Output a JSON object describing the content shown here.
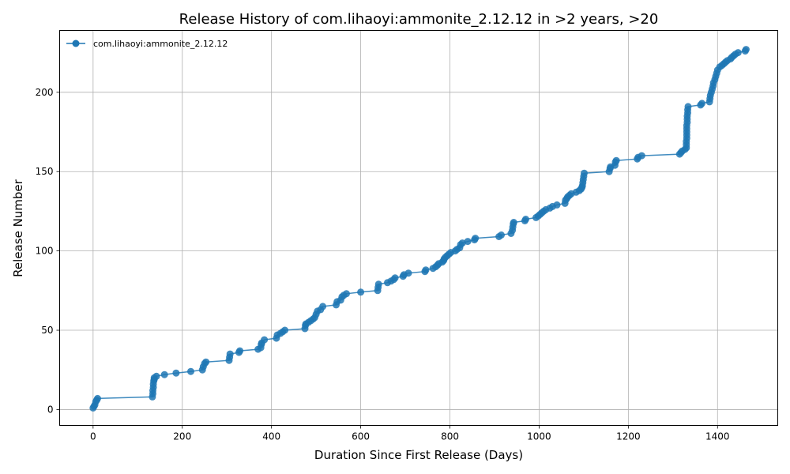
{
  "chart_data": {
    "type": "line",
    "title": "Release History of com.lihaoyi:ammonite_2.12.12 in >2 years, >20",
    "xlabel": "Duration Since First Release (Days)",
    "ylabel": "Release Number",
    "xlim": [
      -75,
      1535
    ],
    "ylim": [
      -10,
      239
    ],
    "xticks": [
      0,
      200,
      400,
      600,
      800,
      1000,
      1200,
      1400
    ],
    "yticks": [
      0,
      50,
      100,
      150,
      200
    ],
    "grid": true,
    "legend": "top-left",
    "color": "#1f77b4",
    "series": [
      {
        "name": "com.lihaoyi:ammonite_2.12.12",
        "points": [
          [
            0,
            1
          ],
          [
            2,
            2
          ],
          [
            4,
            3
          ],
          [
            6,
            5
          ],
          [
            8,
            6
          ],
          [
            10,
            7
          ],
          [
            133,
            8
          ],
          [
            134,
            10
          ],
          [
            134,
            12
          ],
          [
            135,
            14
          ],
          [
            135,
            16
          ],
          [
            136,
            18
          ],
          [
            137,
            19
          ],
          [
            137,
            20
          ],
          [
            142,
            21
          ],
          [
            160,
            22
          ],
          [
            186,
            23
          ],
          [
            219,
            24
          ],
          [
            245,
            25
          ],
          [
            247,
            27
          ],
          [
            250,
            29
          ],
          [
            253,
            30
          ],
          [
            305,
            31
          ],
          [
            306,
            33
          ],
          [
            307,
            35
          ],
          [
            327,
            36
          ],
          [
            329,
            37
          ],
          [
            370,
            38
          ],
          [
            376,
            39
          ],
          [
            377,
            41
          ],
          [
            378,
            42
          ],
          [
            384,
            44
          ],
          [
            411,
            45
          ],
          [
            413,
            47
          ],
          [
            420,
            48
          ],
          [
            425,
            49
          ],
          [
            430,
            50
          ],
          [
            475,
            51
          ],
          [
            476,
            53
          ],
          [
            477,
            54
          ],
          [
            483,
            55
          ],
          [
            488,
            56
          ],
          [
            493,
            57
          ],
          [
            497,
            58
          ],
          [
            500,
            60
          ],
          [
            503,
            62
          ],
          [
            510,
            63
          ],
          [
            515,
            65
          ],
          [
            545,
            66
          ],
          [
            547,
            68
          ],
          [
            555,
            69
          ],
          [
            558,
            71
          ],
          [
            562,
            72
          ],
          [
            568,
            73
          ],
          [
            600,
            74
          ],
          [
            638,
            75
          ],
          [
            639,
            77
          ],
          [
            640,
            79
          ],
          [
            660,
            80
          ],
          [
            668,
            81
          ],
          [
            674,
            82
          ],
          [
            677,
            83
          ],
          [
            695,
            84
          ],
          [
            697,
            85
          ],
          [
            707,
            86
          ],
          [
            744,
            87
          ],
          [
            746,
            88
          ],
          [
            762,
            89
          ],
          [
            768,
            90
          ],
          [
            772,
            91
          ],
          [
            775,
            92
          ],
          [
            783,
            93
          ],
          [
            786,
            94
          ],
          [
            787,
            95
          ],
          [
            790,
            96
          ],
          [
            794,
            97
          ],
          [
            798,
            98
          ],
          [
            802,
            99
          ],
          [
            812,
            100
          ],
          [
            816,
            101
          ],
          [
            822,
            102
          ],
          [
            824,
            104
          ],
          [
            828,
            105
          ],
          [
            840,
            106
          ],
          [
            855,
            107
          ],
          [
            857,
            108
          ],
          [
            910,
            109
          ],
          [
            915,
            110
          ],
          [
            937,
            111
          ],
          [
            940,
            113
          ],
          [
            941,
            115
          ],
          [
            942,
            117
          ],
          [
            943,
            118
          ],
          [
            968,
            119
          ],
          [
            970,
            120
          ],
          [
            993,
            121
          ],
          [
            998,
            122
          ],
          [
            1002,
            123
          ],
          [
            1006,
            124
          ],
          [
            1010,
            125
          ],
          [
            1015,
            126
          ],
          [
            1024,
            127
          ],
          [
            1030,
            128
          ],
          [
            1040,
            129
          ],
          [
            1058,
            130
          ],
          [
            1059,
            132
          ],
          [
            1062,
            133
          ],
          [
            1064,
            134
          ],
          [
            1068,
            135
          ],
          [
            1072,
            136
          ],
          [
            1083,
            137
          ],
          [
            1090,
            138
          ],
          [
            1094,
            139
          ],
          [
            1096,
            140
          ],
          [
            1097,
            141
          ],
          [
            1098,
            143
          ],
          [
            1099,
            145
          ],
          [
            1100,
            147
          ],
          [
            1101,
            149
          ],
          [
            1157,
            150
          ],
          [
            1159,
            152
          ],
          [
            1160,
            153
          ],
          [
            1170,
            154
          ],
          [
            1171,
            156
          ],
          [
            1173,
            157
          ],
          [
            1220,
            158
          ],
          [
            1222,
            159
          ],
          [
            1230,
            160
          ],
          [
            1315,
            161
          ],
          [
            1318,
            162
          ],
          [
            1321,
            163
          ],
          [
            1327,
            164
          ],
          [
            1330,
            165
          ],
          [
            1330,
            167
          ],
          [
            1330,
            169
          ],
          [
            1331,
            171
          ],
          [
            1331,
            173
          ],
          [
            1331,
            175
          ],
          [
            1331,
            177
          ],
          [
            1331,
            179
          ],
          [
            1332,
            181
          ],
          [
            1332,
            183
          ],
          [
            1332,
            185
          ],
          [
            1333,
            187
          ],
          [
            1333,
            189
          ],
          [
            1334,
            191
          ],
          [
            1362,
            192
          ],
          [
            1365,
            193
          ],
          [
            1382,
            194
          ],
          [
            1383,
            196
          ],
          [
            1384,
            198
          ],
          [
            1386,
            200
          ],
          [
            1388,
            202
          ],
          [
            1390,
            204
          ],
          [
            1391,
            206
          ],
          [
            1394,
            208
          ],
          [
            1396,
            210
          ],
          [
            1398,
            212
          ],
          [
            1400,
            214
          ],
          [
            1405,
            216
          ],
          [
            1410,
            217
          ],
          [
            1414,
            218
          ],
          [
            1418,
            219
          ],
          [
            1422,
            220
          ],
          [
            1429,
            221
          ],
          [
            1432,
            222
          ],
          [
            1436,
            223
          ],
          [
            1440,
            224
          ],
          [
            1446,
            225
          ],
          [
            1462,
            226
          ],
          [
            1464,
            227
          ]
        ]
      }
    ]
  }
}
